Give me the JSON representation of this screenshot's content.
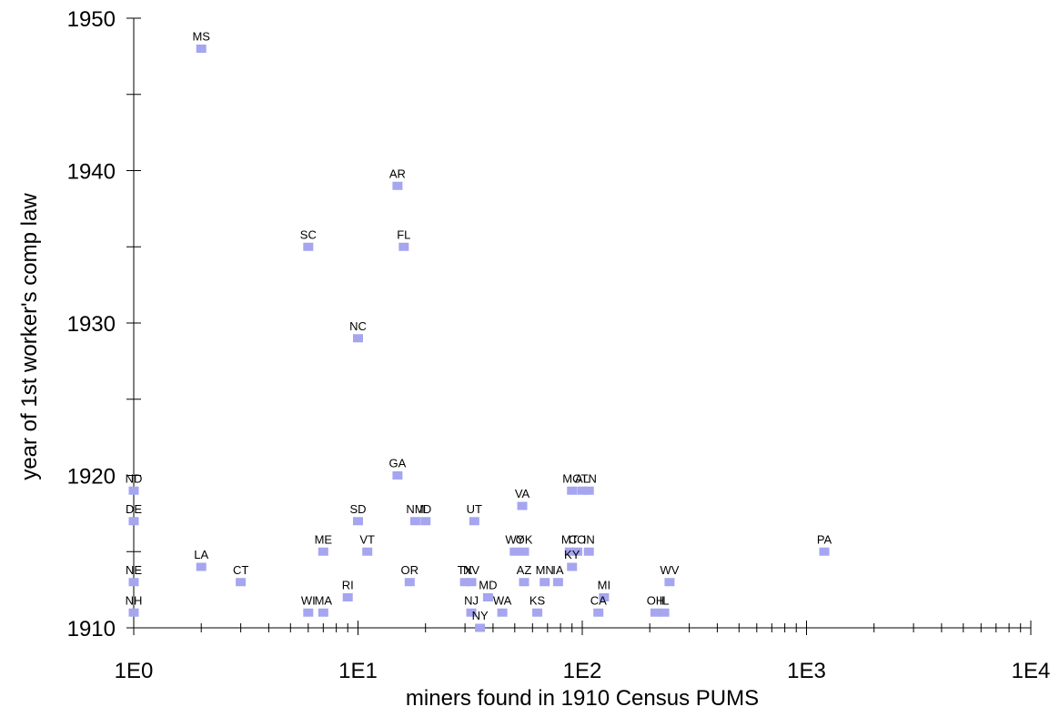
{
  "chart_data": {
    "type": "scatter",
    "title": "",
    "xlabel": "miners found in 1910 Census PUMS",
    "ylabel": "year of 1st worker's comp law",
    "x_scale": "log",
    "xlim": [
      1,
      10000
    ],
    "ylim": [
      1910,
      1950
    ],
    "x_ticks": [
      "1E0",
      "1E1",
      "1E2",
      "1E3",
      "1E4"
    ],
    "y_ticks": [
      "1910",
      "1920",
      "1930",
      "1940",
      "1950"
    ],
    "grid": false,
    "legend": "none",
    "marker_color": "#a5a5f0",
    "points": [
      {
        "label": "MS",
        "x": 2,
        "y": 1948
      },
      {
        "label": "AR",
        "x": 15,
        "y": 1939
      },
      {
        "label": "SC",
        "x": 6,
        "y": 1935
      },
      {
        "label": "FL",
        "x": 16,
        "y": 1935
      },
      {
        "label": "NC",
        "x": 10,
        "y": 1929
      },
      {
        "label": "GA",
        "x": 15,
        "y": 1920
      },
      {
        "label": "ND",
        "x": 1,
        "y": 1919
      },
      {
        "label": "DE",
        "x": 1,
        "y": 1917
      },
      {
        "label": "NE",
        "x": 1,
        "y": 1913
      },
      {
        "label": "NH",
        "x": 1,
        "y": 1911
      },
      {
        "label": "LA",
        "x": 2,
        "y": 1914
      },
      {
        "label": "CT",
        "x": 3,
        "y": 1913
      },
      {
        "label": "WI",
        "x": 6,
        "y": 1911
      },
      {
        "label": "MA",
        "x": 7,
        "y": 1911
      },
      {
        "label": "ME",
        "x": 7,
        "y": 1915
      },
      {
        "label": "RI",
        "x": 9,
        "y": 1912
      },
      {
        "label": "SD",
        "x": 10,
        "y": 1917
      },
      {
        "label": "VT",
        "x": 11,
        "y": 1915
      },
      {
        "label": "OR",
        "x": 17,
        "y": 1913
      },
      {
        "label": "NM",
        "x": 18,
        "y": 1917
      },
      {
        "label": "ID",
        "x": 20,
        "y": 1917
      },
      {
        "label": "UT",
        "x": 33,
        "y": 1917
      },
      {
        "label": "TX",
        "x": 30,
        "y": 1913
      },
      {
        "label": "NV",
        "x": 32,
        "y": 1913
      },
      {
        "label": "NJ",
        "x": 32,
        "y": 1911
      },
      {
        "label": "NY",
        "x": 35,
        "y": 1910
      },
      {
        "label": "MD",
        "x": 38,
        "y": 1912
      },
      {
        "label": "WA",
        "x": 44,
        "y": 1911
      },
      {
        "label": "VA",
        "x": 54,
        "y": 1918
      },
      {
        "label": "WY",
        "x": 50,
        "y": 1915
      },
      {
        "label": "OK",
        "x": 55,
        "y": 1915
      },
      {
        "label": "AZ",
        "x": 55,
        "y": 1913
      },
      {
        "label": "KS",
        "x": 63,
        "y": 1911
      },
      {
        "label": "MN",
        "x": 68,
        "y": 1913
      },
      {
        "label": "IA",
        "x": 78,
        "y": 1913
      },
      {
        "label": "MO",
        "x": 90,
        "y": 1919
      },
      {
        "label": "AL",
        "x": 100,
        "y": 1919
      },
      {
        "label": "TN",
        "x": 107,
        "y": 1919
      },
      {
        "label": "MT",
        "x": 88,
        "y": 1915
      },
      {
        "label": "CO",
        "x": 95,
        "y": 1915
      },
      {
        "label": "IN",
        "x": 107,
        "y": 1915
      },
      {
        "label": "KY",
        "x": 90,
        "y": 1914
      },
      {
        "label": "MI",
        "x": 125,
        "y": 1912
      },
      {
        "label": "CA",
        "x": 118,
        "y": 1911
      },
      {
        "label": "OH",
        "x": 212,
        "y": 1911
      },
      {
        "label": "IL",
        "x": 232,
        "y": 1911
      },
      {
        "label": "WV",
        "x": 245,
        "y": 1913
      },
      {
        "label": "PA",
        "x": 1200,
        "y": 1915
      }
    ]
  }
}
